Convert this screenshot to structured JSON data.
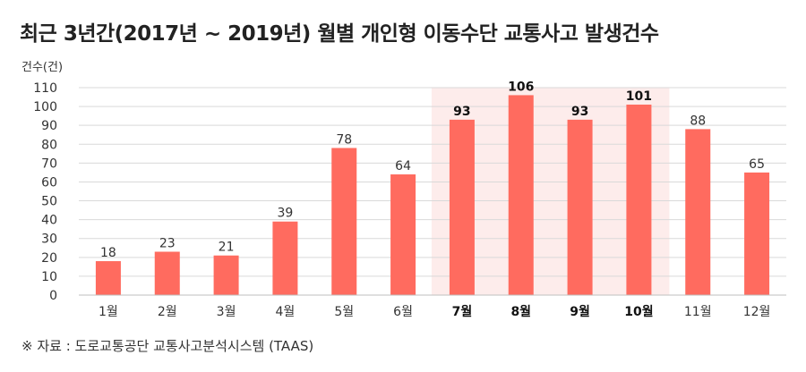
{
  "title": "최근 3년간(2017년 ~ 2019년) 월별 개인형 이동수단 교통사고 발생건수",
  "source": "※ 자료 : 도로교통공단 교통사고분석시스템 (TAAS)",
  "colors": {
    "bar": "#FF6B5F",
    "highlight_band": "#FDECEB",
    "grid": "#D9D9D9"
  },
  "chart_data": {
    "type": "bar",
    "title": "최근 3년간(2017년 ~ 2019년) 월별 개인형 이동수단 교통사고 발생건수",
    "xlabel": "",
    "ylabel": "건수(건)",
    "ylim": [
      0,
      110
    ],
    "yticks": [
      0,
      10,
      20,
      30,
      40,
      50,
      60,
      70,
      80,
      90,
      100,
      110
    ],
    "categories": [
      "1월",
      "2월",
      "3월",
      "4월",
      "5월",
      "6월",
      "7월",
      "8월",
      "9월",
      "10월",
      "11월",
      "12월"
    ],
    "values": [
      18,
      23,
      21,
      39,
      78,
      64,
      93,
      106,
      93,
      101,
      88,
      65
    ],
    "highlighted": [
      "7월",
      "8월",
      "9월",
      "10월"
    ],
    "grid": true
  }
}
